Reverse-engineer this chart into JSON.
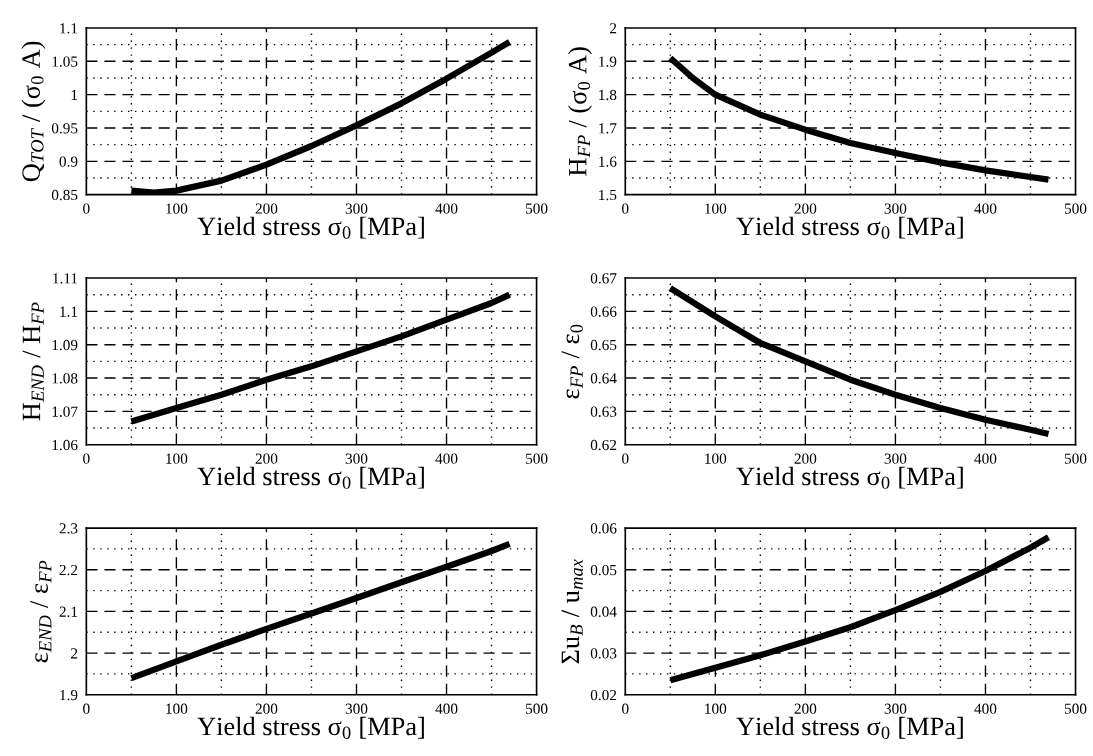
{
  "chart_data": [
    {
      "type": "line",
      "xlabel": "Yield stress σ$_{0}$ [MPa]",
      "ylabel": "Q$_{TOT}$ / (σ$_{0}$ A)",
      "x": [
        50,
        75,
        100,
        150,
        200,
        250,
        300,
        350,
        400,
        450,
        470
      ],
      "series": [
        {
          "color": "#000000",
          "values": [
            0.856,
            0.853,
            0.856,
            0.871,
            0.895,
            0.923,
            0.954,
            0.987,
            1.024,
            1.063,
            1.079
          ]
        }
      ],
      "xlim": [
        0,
        500
      ],
      "ylim": [
        0.85,
        1.1
      ],
      "xticks": [
        0,
        {
          "value": 50,
          "label": null
        },
        100,
        {
          "value": 150,
          "label": null
        },
        200,
        {
          "value": 250,
          "label": null
        },
        300,
        {
          "value": 350,
          "label": null
        },
        400,
        {
          "value": 450,
          "label": null
        },
        500
      ],
      "yticks": [
        0.85,
        {
          "value": 0.875,
          "label": null
        },
        0.9,
        {
          "value": 0.925,
          "label": null
        },
        0.95,
        {
          "value": 0.975,
          "label": null
        },
        1,
        {
          "value": 1.025,
          "label": null
        },
        1.05,
        {
          "value": 1.075,
          "label": null
        },
        1.1
      ],
      "grid": true,
      "marker": "none",
      "line_style": "solid"
    },
    {
      "type": "line",
      "xlabel": "Yield stress σ$_{0}$ [MPa]",
      "ylabel": "H$_{FP}$ / (σ$_{0}$ A)",
      "x": [
        50,
        75,
        100,
        150,
        200,
        250,
        300,
        350,
        400,
        450,
        470
      ],
      "series": [
        {
          "color": "#000000",
          "values": [
            1.91,
            1.85,
            1.8,
            1.74,
            1.695,
            1.655,
            1.625,
            1.597,
            1.573,
            1.553,
            1.545
          ]
        }
      ],
      "xlim": [
        0,
        500
      ],
      "ylim": [
        1.5,
        2
      ],
      "xticks": [
        0,
        {
          "value": 50,
          "label": null
        },
        100,
        {
          "value": 150,
          "label": null
        },
        200,
        {
          "value": 250,
          "label": null
        },
        300,
        {
          "value": 350,
          "label": null
        },
        400,
        {
          "value": 450,
          "label": null
        },
        500
      ],
      "yticks": [
        1.5,
        {
          "value": 1.55,
          "label": null
        },
        1.6,
        {
          "value": 1.65,
          "label": null
        },
        1.7,
        {
          "value": 1.75,
          "label": null
        },
        1.8,
        {
          "value": 1.85,
          "label": null
        },
        1.9,
        {
          "value": 1.95,
          "label": null
        },
        2
      ],
      "grid": true,
      "marker": "none",
      "line_style": "solid"
    },
    {
      "type": "line",
      "xlabel": "Yield stress σ$_{0}$ [MPa]",
      "ylabel": "H$_{END}$ / H$_{FP}$",
      "x": [
        50,
        100,
        150,
        200,
        250,
        300,
        350,
        400,
        450,
        470
      ],
      "series": [
        {
          "color": "#000000",
          "values": [
            1.067,
            1.071,
            1.075,
            1.0795,
            1.0835,
            1.088,
            1.0925,
            1.0975,
            1.1025,
            1.105
          ]
        }
      ],
      "xlim": [
        0,
        500
      ],
      "ylim": [
        1.06,
        1.11
      ],
      "xticks": [
        0,
        {
          "value": 50,
          "label": null
        },
        100,
        {
          "value": 150,
          "label": null
        },
        200,
        {
          "value": 250,
          "label": null
        },
        300,
        {
          "value": 350,
          "label": null
        },
        400,
        {
          "value": 450,
          "label": null
        },
        500
      ],
      "yticks": [
        1.06,
        {
          "value": 1.065,
          "label": null
        },
        1.07,
        {
          "value": 1.075,
          "label": null
        },
        1.08,
        {
          "value": 1.085,
          "label": null
        },
        1.09,
        {
          "value": 1.095,
          "label": null
        },
        1.1,
        {
          "value": 1.105,
          "label": null
        },
        1.11
      ],
      "grid": true,
      "marker": "none",
      "line_style": "solid"
    },
    {
      "type": "line",
      "xlabel": "Yield stress σ$_{0}$ [MPa]",
      "ylabel": "ε$_{FP}$ / ε$_{0}$",
      "x": [
        50,
        100,
        150,
        200,
        250,
        300,
        350,
        400,
        450,
        470
      ],
      "series": [
        {
          "color": "#000000",
          "values": [
            0.667,
            0.6585,
            0.6505,
            0.645,
            0.6395,
            0.635,
            0.631,
            0.6275,
            0.6245,
            0.6232
          ]
        }
      ],
      "xlim": [
        0,
        500
      ],
      "ylim": [
        0.62,
        0.67
      ],
      "xticks": [
        0,
        {
          "value": 50,
          "label": null
        },
        100,
        {
          "value": 150,
          "label": null
        },
        200,
        {
          "value": 250,
          "label": null
        },
        300,
        {
          "value": 350,
          "label": null
        },
        400,
        {
          "value": 450,
          "label": null
        },
        500
      ],
      "yticks": [
        0.62,
        {
          "value": 0.625,
          "label": null
        },
        0.63,
        {
          "value": 0.635,
          "label": null
        },
        0.64,
        {
          "value": 0.645,
          "label": null
        },
        0.65,
        {
          "value": 0.655,
          "label": null
        },
        0.66,
        {
          "value": 0.665,
          "label": null
        },
        0.67
      ],
      "grid": true,
      "marker": "none",
      "line_style": "solid"
    },
    {
      "type": "line",
      "xlabel": "Yield stress σ$_{0}$ [MPa]",
      "ylabel": "ε$_{END}$ / ε$_{FP}$",
      "x": [
        50,
        100,
        150,
        200,
        250,
        300,
        350,
        400,
        450,
        470
      ],
      "series": [
        {
          "color": "#000000",
          "values": [
            1.94,
            1.98,
            2.02,
            2.058,
            2.095,
            2.132,
            2.17,
            2.207,
            2.245,
            2.262
          ]
        }
      ],
      "xlim": [
        0,
        500
      ],
      "ylim": [
        1.9,
        2.3
      ],
      "xticks": [
        0,
        {
          "value": 50,
          "label": null
        },
        100,
        {
          "value": 150,
          "label": null
        },
        200,
        {
          "value": 250,
          "label": null
        },
        300,
        {
          "value": 350,
          "label": null
        },
        400,
        {
          "value": 450,
          "label": null
        },
        500
      ],
      "yticks": [
        1.9,
        {
          "value": 1.95,
          "label": null
        },
        2,
        {
          "value": 2.05,
          "label": null
        },
        2.1,
        {
          "value": 2.15,
          "label": null
        },
        2.2,
        {
          "value": 2.25,
          "label": null
        },
        2.3
      ],
      "grid": true,
      "marker": "none",
      "line_style": "solid"
    },
    {
      "type": "line",
      "xlabel": "Yield stress σ$_{0}$ [MPa]",
      "ylabel": "Σu$_{B}$ / u$_{max}$",
      "x": [
        50,
        100,
        150,
        200,
        250,
        300,
        350,
        400,
        450,
        470
      ],
      "series": [
        {
          "color": "#000000",
          "values": [
            0.0235,
            0.0265,
            0.0295,
            0.0328,
            0.0362,
            0.0403,
            0.0447,
            0.0497,
            0.0553,
            0.0578
          ]
        }
      ],
      "xlim": [
        0,
        500
      ],
      "ylim": [
        0.02,
        0.06
      ],
      "xticks": [
        0,
        {
          "value": 50,
          "label": null
        },
        100,
        {
          "value": 150,
          "label": null
        },
        200,
        {
          "value": 250,
          "label": null
        },
        300,
        {
          "value": 350,
          "label": null
        },
        400,
        {
          "value": 450,
          "label": null
        },
        500
      ],
      "yticks": [
        0.02,
        {
          "value": 0.025,
          "label": null
        },
        0.03,
        {
          "value": 0.035,
          "label": null
        },
        0.04,
        {
          "value": 0.045,
          "label": null
        },
        0.05,
        {
          "value": 0.055,
          "label": null
        },
        0.06
      ],
      "grid": true,
      "marker": "none",
      "line_style": "solid"
    }
  ]
}
